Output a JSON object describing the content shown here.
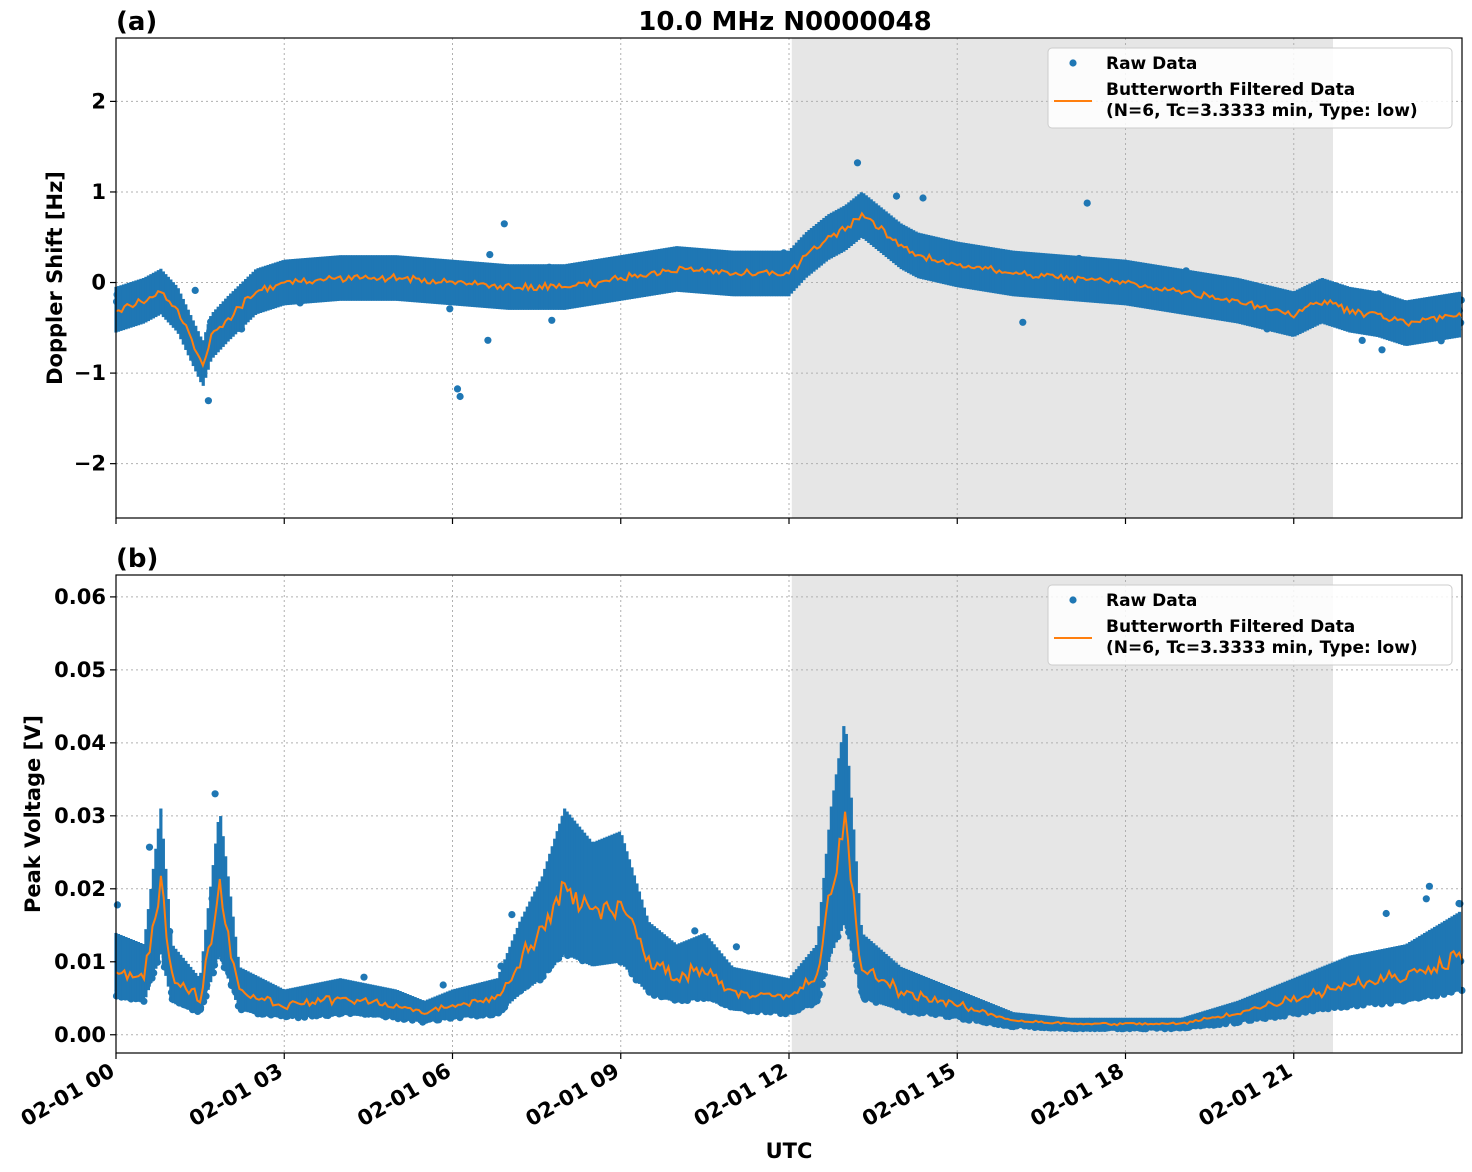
{
  "figure_title": "10.0 MHz N0000048",
  "xlabel": "UTC",
  "colors": {
    "raw": "#1f77b4",
    "filtered": "#ff7f0e",
    "shade": "#e6e6e6",
    "grid": "#b0b0b0"
  },
  "legend": {
    "raw": "Raw Data",
    "filtered_line1": "Butterworth Filtered Data",
    "filtered_line2": "(N=6, Tc=3.3333 min, Type: low)"
  },
  "chart_data": [
    {
      "type": "scatter",
      "panel_label": "(a)",
      "ylabel": "Doppler Shift [Hz]",
      "xlim_hours": [
        0,
        24
      ],
      "ylim": [
        -2.6,
        2.7
      ],
      "yticks": [
        2,
        1,
        0,
        -1,
        -2
      ],
      "ytick_labels": [
        "2",
        "1",
        "0",
        "−1",
        "−2"
      ],
      "xtick_labels": [
        "02-01 00",
        "02-01 03",
        "02-01 06",
        "02-01 09",
        "02-01 12",
        "02-01 15",
        "02-01 18",
        "02-01 21"
      ],
      "shaded_span_hours": [
        12.05,
        21.7
      ],
      "grid": true,
      "legend_position": "top-right",
      "series": [
        {
          "name": "Raw Data",
          "kind": "scatter",
          "spread": 0.28,
          "trend_x": [
            0,
            0.5,
            0.8,
            1.1,
            1.4,
            1.55,
            1.7,
            2.0,
            2.5,
            3.0,
            4.0,
            5.0,
            6.0,
            7.0,
            8.0,
            9.0,
            10.0,
            11.0,
            12.0,
            12.3,
            12.7,
            13.0,
            13.3,
            13.7,
            14.0,
            14.3,
            15.0,
            16.0,
            17.0,
            18.0,
            19.0,
            20.0,
            21.0,
            21.5,
            22.0,
            22.5,
            23.0,
            24.0
          ],
          "trend_y": [
            -0.3,
            -0.2,
            -0.1,
            -0.3,
            -0.7,
            -0.9,
            -0.6,
            -0.4,
            -0.1,
            0.0,
            0.05,
            0.05,
            0.0,
            -0.05,
            -0.05,
            0.05,
            0.15,
            0.1,
            0.1,
            0.3,
            0.5,
            0.6,
            0.75,
            0.55,
            0.4,
            0.3,
            0.2,
            0.1,
            0.05,
            0.0,
            -0.1,
            -0.2,
            -0.35,
            -0.2,
            -0.3,
            -0.35,
            -0.45,
            -0.35
          ]
        },
        {
          "name": "Butterworth Filtered Data",
          "kind": "line"
        }
      ]
    },
    {
      "type": "scatter",
      "panel_label": "(b)",
      "ylabel": "Peak Voltage [V]",
      "xlim_hours": [
        0,
        24
      ],
      "ylim": [
        -0.0025,
        0.063
      ],
      "yticks": [
        0.06,
        0.05,
        0.04,
        0.03,
        0.02,
        0.01,
        0.0
      ],
      "ytick_labels": [
        "0.06",
        "0.05",
        "0.04",
        "0.03",
        "0.02",
        "0.01",
        "0.00"
      ],
      "xtick_labels": [
        "02-01 00",
        "02-01 03",
        "02-01 06",
        "02-01 09",
        "02-01 12",
        "02-01 15",
        "02-01 18",
        "02-01 21"
      ],
      "shaded_span_hours": [
        12.05,
        21.7
      ],
      "grid": true,
      "legend_position": "top-right",
      "series": [
        {
          "name": "Raw Data",
          "kind": "scatter",
          "spread": 0.45,
          "trend_x": [
            0,
            0.5,
            0.8,
            1.0,
            1.5,
            1.85,
            2.2,
            3.0,
            4.0,
            5.0,
            5.5,
            6.0,
            6.8,
            7.2,
            7.6,
            8.0,
            8.5,
            9.0,
            9.5,
            10.0,
            10.5,
            11.0,
            12.0,
            12.5,
            12.75,
            13.0,
            13.3,
            14.0,
            15.0,
            16.0,
            17.0,
            18.0,
            19.0,
            20.0,
            21.0,
            22.0,
            23.0,
            24.0
          ],
          "trend_y": [
            0.009,
            0.008,
            0.02,
            0.008,
            0.005,
            0.02,
            0.006,
            0.004,
            0.005,
            0.004,
            0.003,
            0.004,
            0.005,
            0.01,
            0.014,
            0.02,
            0.017,
            0.018,
            0.01,
            0.008,
            0.009,
            0.006,
            0.005,
            0.008,
            0.02,
            0.028,
            0.009,
            0.006,
            0.004,
            0.002,
            0.0015,
            0.0015,
            0.0015,
            0.003,
            0.005,
            0.007,
            0.008,
            0.011
          ]
        },
        {
          "name": "Butterworth Filtered Data",
          "kind": "line"
        }
      ]
    }
  ]
}
